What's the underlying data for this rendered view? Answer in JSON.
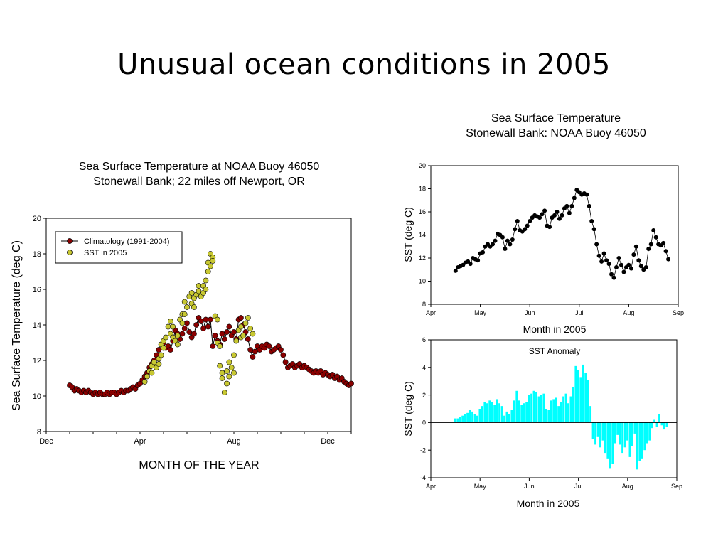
{
  "slide": {
    "title": "Unusual ocean conditions in 2005"
  },
  "chart_data": [
    {
      "type": "scatter",
      "title": "Sea Surface Temperature at NOAA Buoy 46050",
      "subtitle": "Stonewall Bank; 22 miles off Newport, OR",
      "xlabel": "MONTH OF THE YEAR",
      "ylabel": "Sea Surface Temperature (deg C)",
      "x_unit": "month",
      "xlim": [
        0,
        13
      ],
      "ylim": [
        8,
        20
      ],
      "x_ticks": [
        {
          "label": "Dec",
          "x": 0
        },
        {
          "label": "Apr",
          "x": 4
        },
        {
          "label": "Aug",
          "x": 8
        },
        {
          "label": "Dec",
          "x": 12
        }
      ],
      "y_ticks": [
        8,
        10,
        12,
        14,
        16,
        18,
        20
      ],
      "legend": "top-left",
      "series": [
        {
          "name": "Climatology (1991-2004)",
          "marker": "circle",
          "color": "#8b0000",
          "line": true,
          "x": [
            1.0,
            1.1,
            1.2,
            1.3,
            1.4,
            1.5,
            1.6,
            1.7,
            1.8,
            1.9,
            2.0,
            2.1,
            2.2,
            2.3,
            2.4,
            2.5,
            2.6,
            2.7,
            2.8,
            2.9,
            3.0,
            3.1,
            3.2,
            3.3,
            3.4,
            3.5,
            3.6,
            3.7,
            3.8,
            3.9,
            4.0,
            4.1,
            4.2,
            4.3,
            4.4,
            4.5,
            4.6,
            4.7,
            4.8,
            4.9,
            5.0,
            5.1,
            5.2,
            5.3,
            5.4,
            5.5,
            5.6,
            5.7,
            5.8,
            5.9,
            6.0,
            6.1,
            6.2,
            6.3,
            6.4,
            6.5,
            6.6,
            6.7,
            6.8,
            6.9,
            7.0,
            7.1,
            7.2,
            7.3,
            7.4,
            7.5,
            7.6,
            7.7,
            7.8,
            7.9,
            8.0,
            8.1,
            8.2,
            8.3,
            8.4,
            8.5,
            8.6,
            8.7,
            8.8,
            8.9,
            9.0,
            9.1,
            9.2,
            9.3,
            9.4,
            9.5,
            9.6,
            9.7,
            9.8,
            9.9,
            10.0,
            10.1,
            10.2,
            10.3,
            10.4,
            10.5,
            10.6,
            10.7,
            10.8,
            10.9,
            11.0,
            11.1,
            11.2,
            11.3,
            11.4,
            11.5,
            11.6,
            11.7,
            11.8,
            11.9,
            12.0,
            12.1,
            12.2,
            12.3,
            12.4,
            12.5,
            12.6,
            12.7,
            12.8,
            12.9,
            13.0
          ],
          "y": [
            10.6,
            10.5,
            10.3,
            10.4,
            10.3,
            10.2,
            10.3,
            10.2,
            10.3,
            10.2,
            10.1,
            10.2,
            10.1,
            10.2,
            10.1,
            10.1,
            10.2,
            10.1,
            10.2,
            10.2,
            10.1,
            10.2,
            10.3,
            10.2,
            10.3,
            10.3,
            10.4,
            10.5,
            10.4,
            10.6,
            10.7,
            10.9,
            11.1,
            11.3,
            11.6,
            11.8,
            12.0,
            12.3,
            12.6,
            12.9,
            13.0,
            12.7,
            12.8,
            12.6,
            13.1,
            13.7,
            13.5,
            13.2,
            13.5,
            13.8,
            14.1,
            13.6,
            13.3,
            13.5,
            14.0,
            14.4,
            14.2,
            13.8,
            14.3,
            13.9,
            14.3,
            12.8,
            13.4,
            13.1,
            12.9,
            13.5,
            13.2,
            13.6,
            13.9,
            13.4,
            13.6,
            13.2,
            14.3,
            14.4,
            14.0,
            13.6,
            13.2,
            12.6,
            12.2,
            12.5,
            12.8,
            12.6,
            12.8,
            12.7,
            12.9,
            12.8,
            12.5,
            12.6,
            12.7,
            12.8,
            12.6,
            12.3,
            11.9,
            11.6,
            11.7,
            11.8,
            11.6,
            11.7,
            11.8,
            11.6,
            11.7,
            11.6,
            11.5,
            11.4,
            11.3,
            11.4,
            11.3,
            11.4,
            11.2,
            11.3,
            11.2,
            11.1,
            11.2,
            11.0,
            11.1,
            10.9,
            11.0,
            10.8,
            10.7,
            10.6,
            10.7
          ]
        },
        {
          "name": "SST in 2005",
          "marker": "circle",
          "color": "#c8c832",
          "line": false,
          "x": [
            4.2,
            4.3,
            4.4,
            4.5,
            4.5,
            4.6,
            4.7,
            4.8,
            4.8,
            4.9,
            4.9,
            5.0,
            5.0,
            5.1,
            5.2,
            5.3,
            5.3,
            5.4,
            5.4,
            5.5,
            5.6,
            5.6,
            5.7,
            5.8,
            5.8,
            5.9,
            5.9,
            6.0,
            6.1,
            6.2,
            6.2,
            6.3,
            6.3,
            6.4,
            6.5,
            6.5,
            6.6,
            6.7,
            6.7,
            6.8,
            6.8,
            6.9,
            6.9,
            7.0,
            7.0,
            7.1,
            7.1,
            7.2,
            7.3,
            7.3,
            7.4,
            7.4,
            7.5,
            7.5,
            7.6,
            7.7,
            7.7,
            7.8,
            7.8,
            7.9,
            8.0,
            8.0,
            8.1,
            8.2,
            8.3,
            8.3,
            8.4,
            8.5,
            8.6,
            8.7,
            8.8
          ],
          "y": [
            10.8,
            11.1,
            11.4,
            11.7,
            11.3,
            11.9,
            11.6,
            12.1,
            11.8,
            12.9,
            12.3,
            13.1,
            12.7,
            13.3,
            13.9,
            14.2,
            13.5,
            13.9,
            13.3,
            13.1,
            13.4,
            12.9,
            14.3,
            14.6,
            14.1,
            15.3,
            14.6,
            15.0,
            15.6,
            15.2,
            15.8,
            15.5,
            15.0,
            15.7,
            16.2,
            15.9,
            15.6,
            16.2,
            15.8,
            16.5,
            16.0,
            17.5,
            17.0,
            18.0,
            17.3,
            17.8,
            17.6,
            14.5,
            14.3,
            13.0,
            12.8,
            11.7,
            11.3,
            11.0,
            10.2,
            10.7,
            11.4,
            11.9,
            11.1,
            11.6,
            11.3,
            12.3,
            13.1,
            13.7,
            13.3,
            13.9,
            13.4,
            14.1,
            14.4,
            13.8,
            13.5
          ]
        }
      ]
    },
    {
      "type": "line",
      "title": "Sea Surface Temperature",
      "subtitle": "Stonewall Bank: NOAA Buoy 46050",
      "xlabel": "Month in 2005",
      "ylabel": "SST (deg C)",
      "x_unit": "month",
      "xlim": [
        4,
        9
      ],
      "ylim": [
        8,
        20
      ],
      "x_ticks": [
        {
          "label": "Apr",
          "x": 4
        },
        {
          "label": "May",
          "x": 5
        },
        {
          "label": "Jun",
          "x": 6
        },
        {
          "label": "Jul",
          "x": 7
        },
        {
          "label": "Aug",
          "x": 8
        },
        {
          "label": "Sep",
          "x": 9
        }
      ],
      "y_ticks": [
        8,
        10,
        12,
        14,
        16,
        18,
        20
      ],
      "series": [
        {
          "marker": "circle",
          "color": "#000000",
          "x": [
            4.5,
            4.55,
            4.6,
            4.65,
            4.7,
            4.75,
            4.8,
            4.85,
            4.9,
            4.95,
            5.0,
            5.05,
            5.1,
            5.15,
            5.2,
            5.25,
            5.3,
            5.35,
            5.4,
            5.45,
            5.5,
            5.55,
            5.6,
            5.65,
            5.7,
            5.75,
            5.8,
            5.85,
            5.9,
            5.95,
            6.0,
            6.05,
            6.1,
            6.15,
            6.2,
            6.25,
            6.3,
            6.35,
            6.4,
            6.45,
            6.5,
            6.55,
            6.6,
            6.65,
            6.7,
            6.75,
            6.8,
            6.85,
            6.9,
            6.95,
            7.0,
            7.05,
            7.1,
            7.15,
            7.2,
            7.25,
            7.3,
            7.35,
            7.4,
            7.45,
            7.5,
            7.55,
            7.6,
            7.65,
            7.7,
            7.75,
            7.8,
            7.85,
            7.9,
            7.95,
            8.0,
            8.05,
            8.1,
            8.15,
            8.2,
            8.25,
            8.3,
            8.35,
            8.4,
            8.45,
            8.5,
            8.55,
            8.6,
            8.65,
            8.7,
            8.75,
            8.8
          ],
          "y": [
            10.9,
            11.2,
            11.3,
            11.4,
            11.6,
            11.7,
            11.5,
            12.0,
            11.9,
            11.8,
            12.4,
            12.5,
            13.0,
            13.2,
            13.0,
            13.2,
            13.5,
            14.1,
            14.0,
            13.8,
            12.8,
            13.5,
            13.2,
            13.6,
            14.5,
            15.2,
            14.4,
            14.3,
            14.5,
            14.8,
            15.2,
            15.5,
            15.7,
            15.6,
            15.5,
            15.8,
            16.1,
            14.8,
            14.7,
            15.5,
            15.7,
            16.0,
            15.4,
            15.7,
            16.3,
            16.5,
            15.9,
            16.5,
            17.2,
            17.9,
            17.7,
            17.5,
            17.6,
            17.5,
            16.5,
            15.2,
            14.5,
            13.2,
            12.2,
            11.7,
            12.4,
            11.8,
            11.5,
            10.6,
            10.3,
            11.2,
            12.0,
            11.4,
            10.8,
            11.2,
            11.4,
            11.1,
            12.3,
            13.0,
            11.8,
            11.3,
            11.0,
            11.2,
            12.8,
            13.2,
            14.4,
            13.8,
            13.2,
            13.1,
            13.3,
            12.6,
            11.9
          ]
        }
      ]
    },
    {
      "type": "bar",
      "title": "SST Anomaly",
      "xlabel": "Month in 2005",
      "ylabel": "SST (deg C)",
      "x_unit": "month",
      "xlim": [
        4,
        9
      ],
      "ylim": [
        -4,
        6
      ],
      "x_ticks": [
        {
          "label": "Apr",
          "x": 4
        },
        {
          "label": "May",
          "x": 5
        },
        {
          "label": "Jun",
          "x": 6
        },
        {
          "label": "Jul",
          "x": 7
        },
        {
          "label": "Aug",
          "x": 8
        },
        {
          "label": "Sep",
          "x": 9
        }
      ],
      "y_ticks": [
        -4,
        -2,
        0,
        2,
        4,
        6
      ],
      "series": [
        {
          "color": "#00ffff",
          "x": [
            4.5,
            4.55,
            4.6,
            4.65,
            4.7,
            4.75,
            4.8,
            4.85,
            4.9,
            4.95,
            5.0,
            5.05,
            5.1,
            5.15,
            5.2,
            5.25,
            5.3,
            5.35,
            5.4,
            5.45,
            5.5,
            5.55,
            5.6,
            5.65,
            5.7,
            5.75,
            5.8,
            5.85,
            5.9,
            5.95,
            6.0,
            6.05,
            6.1,
            6.15,
            6.2,
            6.25,
            6.3,
            6.35,
            6.4,
            6.45,
            6.5,
            6.55,
            6.6,
            6.65,
            6.7,
            6.75,
            6.8,
            6.85,
            6.9,
            6.95,
            7.0,
            7.05,
            7.1,
            7.15,
            7.2,
            7.25,
            7.3,
            7.35,
            7.4,
            7.45,
            7.5,
            7.55,
            7.6,
            7.65,
            7.7,
            7.75,
            7.8,
            7.85,
            7.9,
            7.95,
            8.0,
            8.05,
            8.1,
            8.15,
            8.2,
            8.25,
            8.3,
            8.35,
            8.4,
            8.45,
            8.5,
            8.55,
            8.6,
            8.65,
            8.7,
            8.75,
            8.8
          ],
          "values": [
            0.3,
            0.3,
            0.4,
            0.5,
            0.6,
            0.7,
            0.9,
            0.8,
            0.6,
            0.5,
            1.0,
            1.2,
            1.5,
            1.4,
            1.6,
            1.5,
            1.3,
            1.7,
            1.4,
            1.2,
            0.5,
            0.8,
            0.6,
            0.9,
            1.6,
            2.3,
            1.6,
            1.3,
            1.4,
            1.5,
            2.0,
            2.1,
            2.3,
            2.2,
            1.9,
            2.0,
            2.1,
            1.0,
            0.9,
            1.6,
            1.7,
            1.8,
            1.2,
            1.5,
            1.9,
            2.1,
            1.4,
            1.9,
            2.6,
            4.1,
            3.8,
            3.3,
            4.2,
            3.6,
            3.1,
            1.2,
            -1.2,
            -1.6,
            -1.0,
            -1.8,
            -1.3,
            -2.2,
            -2.6,
            -3.3,
            -3.0,
            -1.5,
            -0.9,
            -1.6,
            -2.2,
            -1.8,
            -1.3,
            -2.5,
            -1.7,
            -0.8,
            -3.4,
            -2.8,
            -2.6,
            -2.0,
            -1.5,
            -1.3,
            -0.4,
            0.2,
            -0.3,
            0.6,
            -0.2,
            -0.5,
            -0.3
          ]
        }
      ]
    }
  ]
}
